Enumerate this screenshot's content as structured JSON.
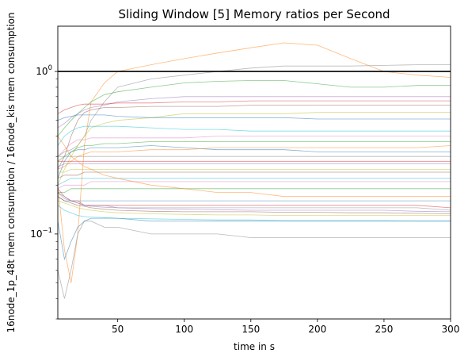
{
  "chart_data": {
    "type": "line",
    "title": "Sliding Window [5] Memory ratios per Second",
    "xlabel": "time in s",
    "ylabel": "16node_1p_48t mem consumption / 16node_kis mem consumption",
    "xlim": [
      5,
      300
    ],
    "ylim": [
      0.03,
      1.9
    ],
    "yscale": "log",
    "grid": false,
    "legend": "none",
    "x_ticks": [
      50,
      100,
      150,
      200,
      250,
      300
    ],
    "y_ticks": [
      {
        "value": 0.1,
        "label": "10",
        "exp": "−1"
      },
      {
        "value": 1,
        "label": "10",
        "exp": "0"
      }
    ],
    "reference_line": {
      "y": 1.0,
      "color": "#000000"
    },
    "x": [
      5,
      10,
      15,
      20,
      25,
      30,
      40,
      50,
      75,
      100,
      125,
      150,
      175,
      200,
      225,
      250,
      275,
      300
    ],
    "series": [
      {
        "color": "#ff7f0e",
        "values": [
          0.2,
          0.08,
          0.05,
          0.1,
          0.35,
          0.65,
          0.85,
          1.0,
          1.1,
          1.2,
          1.3,
          1.4,
          1.5,
          1.45,
          1.2,
          1.0,
          0.95,
          0.92
        ]
      },
      {
        "color": "#7f7f7f",
        "values": [
          0.3,
          0.32,
          0.33,
          0.35,
          0.4,
          0.5,
          0.65,
          0.8,
          0.9,
          0.95,
          1.0,
          1.05,
          1.08,
          1.08,
          1.08,
          1.09,
          1.1,
          1.1
        ]
      },
      {
        "color": "#2ca02c",
        "values": [
          0.4,
          0.45,
          0.5,
          0.55,
          0.6,
          0.65,
          0.72,
          0.75,
          0.8,
          0.85,
          0.87,
          0.88,
          0.88,
          0.84,
          0.8,
          0.8,
          0.82,
          0.82
        ]
      },
      {
        "color": "#9467bd",
        "values": [
          0.45,
          0.48,
          0.52,
          0.55,
          0.58,
          0.6,
          0.62,
          0.65,
          0.68,
          0.7,
          0.7,
          0.7,
          0.7,
          0.7,
          0.7,
          0.7,
          0.7,
          0.7
        ]
      },
      {
        "color": "#d62728",
        "values": [
          0.55,
          0.58,
          0.6,
          0.62,
          0.63,
          0.63,
          0.63,
          0.64,
          0.64,
          0.65,
          0.65,
          0.66,
          0.66,
          0.66,
          0.66,
          0.66,
          0.66,
          0.66
        ]
      },
      {
        "color": "#8c564b",
        "values": [
          0.25,
          0.3,
          0.4,
          0.5,
          0.56,
          0.58,
          0.6,
          0.6,
          0.61,
          0.61,
          0.61,
          0.62,
          0.62,
          0.62,
          0.62,
          0.62,
          0.62,
          0.62
        ]
      },
      {
        "color": "#bcbd22",
        "values": [
          0.2,
          0.25,
          0.3,
          0.35,
          0.4,
          0.45,
          0.48,
          0.5,
          0.52,
          0.55,
          0.55,
          0.55,
          0.55,
          0.56,
          0.56,
          0.56,
          0.56,
          0.56
        ]
      },
      {
        "color": "#1f77b4",
        "values": [
          0.5,
          0.52,
          0.53,
          0.54,
          0.54,
          0.54,
          0.54,
          0.53,
          0.52,
          0.52,
          0.52,
          0.52,
          0.52,
          0.51,
          0.51,
          0.51,
          0.51,
          0.51
        ]
      },
      {
        "color": "#17becf",
        "values": [
          0.35,
          0.4,
          0.43,
          0.45,
          0.46,
          0.46,
          0.46,
          0.46,
          0.45,
          0.44,
          0.44,
          0.43,
          0.43,
          0.43,
          0.43,
          0.43,
          0.43,
          0.43
        ]
      },
      {
        "color": "#e377c2",
        "values": [
          0.3,
          0.33,
          0.36,
          0.38,
          0.38,
          0.39,
          0.39,
          0.39,
          0.39,
          0.39,
          0.4,
          0.4,
          0.4,
          0.4,
          0.4,
          0.4,
          0.4,
          0.4
        ]
      },
      {
        "color": "#2ca02c",
        "values": [
          0.28,
          0.3,
          0.32,
          0.34,
          0.35,
          0.35,
          0.36,
          0.36,
          0.37,
          0.37,
          0.37,
          0.37,
          0.37,
          0.37,
          0.37,
          0.37,
          0.37,
          0.37
        ]
      },
      {
        "color": "#1f77b4",
        "values": [
          0.22,
          0.28,
          0.32,
          0.33,
          0.33,
          0.34,
          0.34,
          0.34,
          0.35,
          0.34,
          0.33,
          0.33,
          0.33,
          0.32,
          0.32,
          0.32,
          0.32,
          0.32
        ]
      },
      {
        "color": "#ff7f0e",
        "values": [
          0.25,
          0.26,
          0.28,
          0.3,
          0.31,
          0.32,
          0.32,
          0.32,
          0.33,
          0.33,
          0.34,
          0.34,
          0.34,
          0.34,
          0.34,
          0.34,
          0.34,
          0.35
        ]
      },
      {
        "color": "#7f7f7f",
        "values": [
          0.3,
          0.3,
          0.3,
          0.3,
          0.3,
          0.3,
          0.3,
          0.3,
          0.3,
          0.3,
          0.3,
          0.3,
          0.3,
          0.3,
          0.3,
          0.3,
          0.3,
          0.3
        ]
      },
      {
        "color": "#d62728",
        "values": [
          0.28,
          0.28,
          0.28,
          0.28,
          0.28,
          0.28,
          0.28,
          0.28,
          0.28,
          0.28,
          0.28,
          0.28,
          0.28,
          0.28,
          0.28,
          0.28,
          0.28,
          0.28
        ]
      },
      {
        "color": "#9467bd",
        "values": [
          0.26,
          0.27,
          0.27,
          0.27,
          0.27,
          0.27,
          0.27,
          0.27,
          0.27,
          0.27,
          0.27,
          0.27,
          0.27,
          0.27,
          0.27,
          0.27,
          0.27,
          0.27
        ]
      },
      {
        "color": "#bcbd22",
        "values": [
          0.24,
          0.24,
          0.25,
          0.25,
          0.25,
          0.25,
          0.25,
          0.25,
          0.25,
          0.25,
          0.25,
          0.25,
          0.25,
          0.25,
          0.25,
          0.25,
          0.25,
          0.25
        ]
      },
      {
        "color": "#8c564b",
        "values": [
          0.22,
          0.23,
          0.23,
          0.23,
          0.24,
          0.24,
          0.24,
          0.24,
          0.24,
          0.24,
          0.24,
          0.24,
          0.24,
          0.24,
          0.24,
          0.24,
          0.24,
          0.24
        ]
      },
      {
        "color": "#17becf",
        "values": [
          0.2,
          0.21,
          0.22,
          0.22,
          0.22,
          0.22,
          0.22,
          0.22,
          0.22,
          0.22,
          0.22,
          0.22,
          0.22,
          0.22,
          0.22,
          0.22,
          0.22,
          0.22
        ]
      },
      {
        "color": "#e377c2",
        "values": [
          0.19,
          0.2,
          0.2,
          0.2,
          0.2,
          0.21,
          0.21,
          0.21,
          0.21,
          0.21,
          0.21,
          0.21,
          0.21,
          0.21,
          0.21,
          0.21,
          0.21,
          0.21
        ]
      },
      {
        "color": "#2ca02c",
        "values": [
          0.18,
          0.18,
          0.19,
          0.19,
          0.19,
          0.19,
          0.19,
          0.19,
          0.19,
          0.19,
          0.19,
          0.19,
          0.19,
          0.19,
          0.19,
          0.19,
          0.19,
          0.19
        ]
      },
      {
        "color": "#ff7f0e",
        "values": [
          0.4,
          0.35,
          0.3,
          0.28,
          0.26,
          0.25,
          0.23,
          0.22,
          0.2,
          0.19,
          0.18,
          0.18,
          0.17,
          0.17,
          0.17,
          0.17,
          0.17,
          0.17
        ]
      },
      {
        "color": "#1f77b4",
        "values": [
          0.17,
          0.16,
          0.16,
          0.16,
          0.16,
          0.16,
          0.16,
          0.16,
          0.16,
          0.16,
          0.16,
          0.16,
          0.16,
          0.16,
          0.16,
          0.16,
          0.16,
          0.16
        ]
      },
      {
        "color": "#d62728",
        "values": [
          0.19,
          0.17,
          0.16,
          0.16,
          0.15,
          0.15,
          0.15,
          0.15,
          0.15,
          0.15,
          0.15,
          0.15,
          0.15,
          0.15,
          0.15,
          0.15,
          0.15,
          0.145
        ]
      },
      {
        "color": "#7f7f7f",
        "values": [
          0.18,
          0.165,
          0.16,
          0.155,
          0.15,
          0.15,
          0.15,
          0.145,
          0.145,
          0.145,
          0.145,
          0.145,
          0.145,
          0.145,
          0.145,
          0.145,
          0.145,
          0.14
        ]
      },
      {
        "color": "#9467bd",
        "values": [
          0.18,
          0.17,
          0.16,
          0.155,
          0.15,
          0.148,
          0.146,
          0.145,
          0.143,
          0.142,
          0.141,
          0.14,
          0.14,
          0.14,
          0.14,
          0.14,
          0.138,
          0.137
        ]
      },
      {
        "color": "#8c564b",
        "values": [
          0.17,
          0.16,
          0.155,
          0.15,
          0.148,
          0.145,
          0.142,
          0.14,
          0.138,
          0.137,
          0.137,
          0.137,
          0.136,
          0.136,
          0.135,
          0.135,
          0.134,
          0.133
        ]
      },
      {
        "color": "#bcbd22",
        "values": [
          0.16,
          0.155,
          0.15,
          0.145,
          0.142,
          0.14,
          0.137,
          0.135,
          0.133,
          0.132,
          0.131,
          0.131,
          0.13,
          0.13,
          0.13,
          0.13,
          0.13,
          0.13
        ]
      },
      {
        "color": "#17becf",
        "values": [
          0.15,
          0.14,
          0.135,
          0.13,
          0.128,
          0.127,
          0.126,
          0.125,
          0.124,
          0.123,
          0.122,
          0.122,
          0.121,
          0.121,
          0.121,
          0.121,
          0.12,
          0.12
        ]
      },
      {
        "color": "#7f7f7f",
        "values": [
          0.06,
          0.04,
          0.06,
          0.1,
          0.12,
          0.12,
          0.11,
          0.11,
          0.1,
          0.1,
          0.1,
          0.095,
          0.095,
          0.095,
          0.095,
          0.095,
          0.095,
          0.095
        ]
      },
      {
        "color": "#1f77b4",
        "values": [
          0.12,
          0.07,
          0.09,
          0.11,
          0.12,
          0.125,
          0.125,
          0.125,
          0.12,
          0.12,
          0.12,
          0.12,
          0.12,
          0.12,
          0.12,
          0.12,
          0.12,
          0.12
        ]
      }
    ]
  }
}
